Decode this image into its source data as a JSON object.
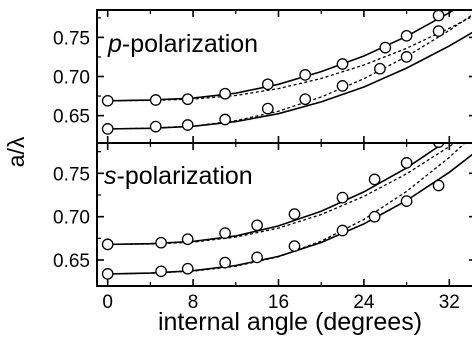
{
  "chart_data": [
    {
      "type": "line",
      "panel": "top",
      "title_italic": "p",
      "title_rest": "-polarization",
      "xlabel": "internal angle (degrees)",
      "ylabel": "a/λ",
      "xlim": [
        -1,
        34.5
      ],
      "ylim": [
        0.615,
        0.785
      ],
      "yticks": [
        0.65,
        0.7,
        0.75
      ],
      "ytick_labels": [
        "0.65",
        "0.70",
        "0.75"
      ],
      "series": [
        {
          "role": "upper band",
          "markers": {
            "x": [
              0,
              4.5,
              7.5,
              11,
              15,
              18.5,
              22,
              26,
              28,
              31
            ],
            "y": [
              0.669,
              0.67,
              0.671,
              0.678,
              0.69,
              0.702,
              0.716,
              0.737,
              0.752,
              0.778
            ]
          },
          "solid": {
            "x": [
              0,
              4,
              8,
              12,
              16,
              20,
              24,
              28,
              32,
              34.5
            ],
            "y": [
              0.669,
              0.6698,
              0.6724,
              0.6786,
              0.69,
              0.7062,
              0.7262,
              0.7514,
              0.7816,
              0.803
            ]
          },
          "dashed": {
            "x": [
              0,
              4,
              8,
              12,
              16,
              20,
              24,
              28,
              32,
              34.5
            ],
            "y": [
              0.669,
              0.6694,
              0.6711,
              0.6757,
              0.6845,
              0.6975,
              0.7147,
              0.7361,
              0.7617,
              0.779
            ]
          }
        },
        {
          "role": "lower band",
          "markers": {
            "x": [
              0,
              4.5,
              7.5,
              11,
              15,
              18.5,
              22,
              25.5,
              28,
              31
            ],
            "y": [
              0.633,
              0.636,
              0.638,
              0.645,
              0.659,
              0.671,
              0.688,
              0.71,
              0.725,
              0.758
            ]
          },
          "solid": {
            "x": [
              0,
              4,
              8,
              12,
              16,
              20,
              24,
              28,
              32,
              34.5
            ],
            "y": [
              0.633,
              0.6338,
              0.6363,
              0.6423,
              0.6525,
              0.6675,
              0.6866,
              0.7107,
              0.7391,
              0.759
            ]
          },
          "dashed": {
            "x": [
              0,
              4,
              8,
              12,
              16,
              20,
              24,
              28,
              32,
              34.5
            ],
            "y": [
              0.633,
              0.6339,
              0.6366,
              0.6435,
              0.6556,
              0.6738,
              0.6972,
              0.7256,
              0.7589,
              0.782
            ]
          }
        }
      ]
    },
    {
      "type": "line",
      "panel": "bottom",
      "title_italic": "s",
      "title_rest": "-polarization",
      "xlabel": "internal angle (degrees)",
      "ylabel": "a/λ",
      "xlim": [
        -1,
        34.5
      ],
      "ylim": [
        0.62,
        0.785
      ],
      "xticks": [
        0,
        8,
        16,
        24,
        32
      ],
      "xtick_labels": [
        "0",
        "8",
        "16",
        "24",
        "32"
      ],
      "yticks": [
        0.65,
        0.7,
        0.75
      ],
      "ytick_labels": [
        "0.65",
        "0.70",
        "0.75"
      ],
      "series": [
        {
          "role": "upper band",
          "markers": {
            "x": [
              0,
              5,
              7.5,
              11,
              14,
              17.5,
              22,
              25,
              28,
              31
            ],
            "y": [
              0.668,
              0.67,
              0.674,
              0.681,
              0.69,
              0.703,
              0.722,
              0.743,
              0.762,
              0.786
            ]
          },
          "solid": {
            "x": [
              0,
              4,
              8,
              12,
              16,
              20,
              24,
              28,
              32,
              34.5
            ],
            "y": [
              0.668,
              0.6688,
              0.6715,
              0.6778,
              0.6893,
              0.7063,
              0.7286,
              0.7563,
              0.7894,
              0.813
            ]
          },
          "dashed": {
            "x": [
              0,
              4,
              8,
              12,
              16,
              20,
              24,
              28,
              32,
              34.5
            ],
            "y": [
              0.668,
              0.6685,
              0.6707,
              0.6764,
              0.6868,
              0.7025,
              0.7234,
              0.7495,
              0.7808,
              0.803
            ]
          }
        },
        {
          "role": "lower band",
          "markers": {
            "x": [
              0,
              5,
              7.5,
              11,
              14,
              17.5,
              22,
              25,
              28,
              31
            ],
            "y": [
              0.634,
              0.637,
              0.64,
              0.647,
              0.653,
              0.666,
              0.684,
              0.7,
              0.718,
              0.736
            ]
          },
          "solid": {
            "x": [
              0,
              4,
              8,
              12,
              16,
              20,
              24,
              28,
              32,
              34.5
            ],
            "y": [
              0.634,
              0.6349,
              0.6377,
              0.6437,
              0.6542,
              0.6702,
              0.6917,
              0.7187,
              0.7512,
              0.775
            ]
          },
          "dashed": {
            "x": [
              0,
              4,
              8,
              12,
              16,
              20,
              24,
              28,
              32,
              34.5
            ],
            "y": [
              0.634,
              0.6348,
              0.6372,
              0.6429,
              0.6537,
              0.6717,
              0.6968,
              0.7291,
              0.7684,
              0.797
            ]
          }
        }
      ]
    }
  ]
}
